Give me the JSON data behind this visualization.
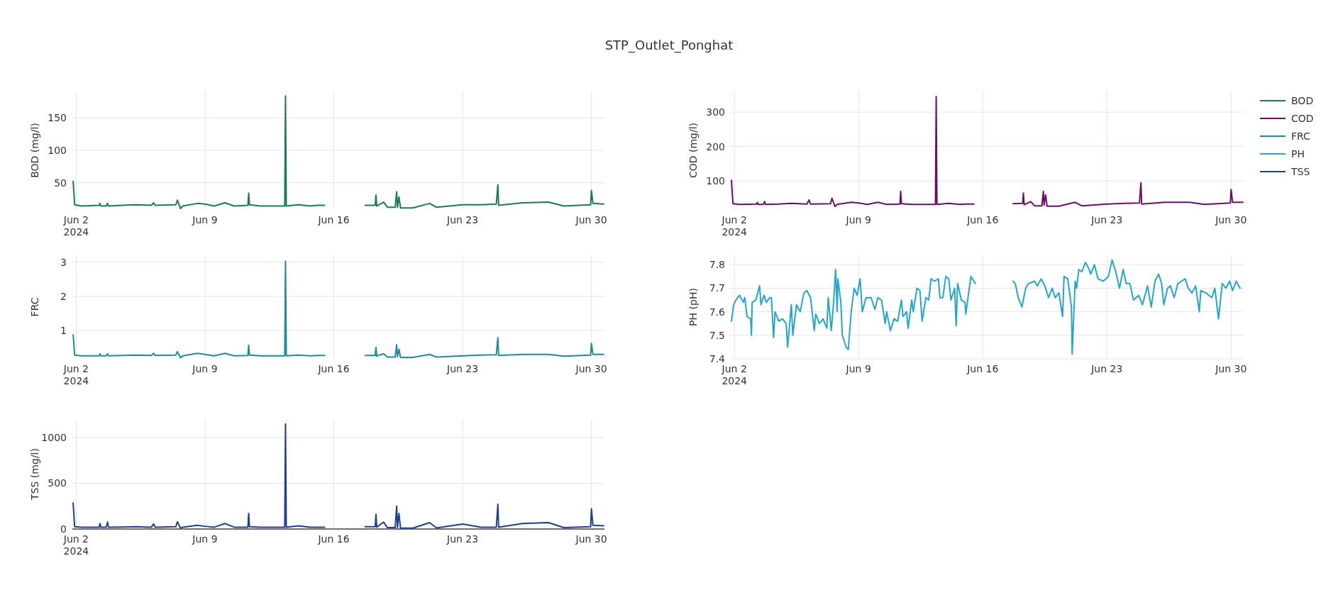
{
  "chart_data": [
    {
      "type": "line",
      "title": "STP_Outlet_Ponghat",
      "ylabel": "BOD (mg/l)",
      "xlim": [
        "2024-06-01T19:00",
        "2024-06-30T17:00"
      ],
      "xticks": [
        {
          "value": "2024-06-02",
          "label": "Jun 2\n2024"
        },
        {
          "value": "2024-06-09",
          "label": "Jun 9"
        },
        {
          "value": "2024-06-16",
          "label": "Jun 16"
        },
        {
          "value": "2024-06-23",
          "label": "Jun 23"
        },
        {
          "value": "2024-06-30",
          "label": "Jun 30"
        }
      ],
      "ylim": [
        8,
        192
      ],
      "yticks": [
        50,
        100,
        150
      ],
      "grid": true,
      "legend": "right",
      "marker": "none",
      "line_style": "solid",
      "x": [
        "2024-06-01T20:00",
        "2024-06-01T22:00",
        "2024-06-02T07:00",
        "2024-06-03T06:00",
        "2024-06-03T07:00",
        "2024-06-03T08:00",
        "2024-06-03T15:00",
        "2024-06-03T17:00",
        "2024-06-03T18:00",
        "2024-06-04T12:00",
        "2024-06-05T05:00",
        "2024-06-06T02:00",
        "2024-06-06T05:00",
        "2024-06-06T07:00",
        "2024-06-07T10:00",
        "2024-06-07T12:00",
        "2024-06-07T16:00",
        "2024-06-07T19:00",
        "2024-06-08T14:00",
        "2024-06-09T00:00",
        "2024-06-09T12:00",
        "2024-06-10T02:00",
        "2024-06-10T14:00",
        "2024-06-11T08:00",
        "2024-06-11T09:00",
        "2024-06-11T10:00",
        "2024-06-12T00:00",
        "2024-06-13T08:00",
        "2024-06-13T09:00",
        "2024-06-13T10:00",
        "2024-06-14T02:00",
        "2024-06-14T17:00",
        "2024-06-15T02:00",
        "2024-06-15T12:00",
        "2024-06-16T12:00",
        "2024-06-17T17:00",
        "2024-06-18T06:00",
        "2024-06-18T07:00",
        "2024-06-18T08:00",
        "2024-06-18T17:00",
        "2024-06-18T22:00",
        "2024-06-19T08:00",
        "2024-06-19T10:00",
        "2024-06-19T11:00",
        "2024-06-19T13:00",
        "2024-06-19T15:00",
        "2024-06-20T07:00",
        "2024-06-21T05:00",
        "2024-06-21T14:00",
        "2024-06-23T00:00",
        "2024-06-24T00:00",
        "2024-06-24T20:00",
        "2024-06-24T22:00",
        "2024-06-24T23:00",
        "2024-06-26T06:00",
        "2024-06-27T16:00",
        "2024-06-28T12:00",
        "2024-06-29T23:00",
        "2024-06-30T00:00",
        "2024-06-30T02:00",
        "2024-06-30T16:00"
      ],
      "series": [
        {
          "name": "BOD",
          "color": "#1a7a5a",
          "values": [
            52,
            16,
            14,
            15,
            18,
            14,
            14,
            18,
            14,
            15,
            16,
            15,
            19,
            15,
            16,
            23,
            10,
            14,
            18,
            17,
            14,
            19,
            14,
            15,
            34,
            16,
            14,
            14,
            184,
            14,
            16,
            14,
            15,
            15,
            null,
            15,
            15,
            31,
            14,
            20,
            12,
            12,
            36,
            12,
            28,
            11,
            11,
            18,
            12,
            16,
            16,
            17,
            47,
            15,
            19,
            20,
            14,
            16,
            38,
            18,
            17
          ]
        }
      ]
    },
    {
      "type": "line",
      "ylabel": "COD (mg/l)",
      "xlim": [
        "2024-06-01T19:00",
        "2024-06-30T17:00"
      ],
      "xticks": [
        {
          "value": "2024-06-02",
          "label": "Jun 2\n2024"
        },
        {
          "value": "2024-06-09",
          "label": "Jun 9"
        },
        {
          "value": "2024-06-16",
          "label": "Jun 16"
        },
        {
          "value": "2024-06-23",
          "label": "Jun 23"
        },
        {
          "value": "2024-06-30",
          "label": "Jun 30"
        }
      ],
      "ylim": [
        16,
        362
      ],
      "yticks": [
        100,
        200,
        300
      ],
      "grid": true,
      "legend": "right",
      "marker": "none",
      "line_style": "solid",
      "x": [
        "2024-06-01T20:00",
        "2024-06-01T22:00",
        "2024-06-02T07:00",
        "2024-06-03T06:00",
        "2024-06-03T07:00",
        "2024-06-03T08:00",
        "2024-06-03T15:00",
        "2024-06-03T17:00",
        "2024-06-03T18:00",
        "2024-06-04T12:00",
        "2024-06-05T05:00",
        "2024-06-06T02:00",
        "2024-06-06T05:00",
        "2024-06-06T07:00",
        "2024-06-07T10:00",
        "2024-06-07T12:00",
        "2024-06-07T16:00",
        "2024-06-07T19:00",
        "2024-06-08T14:00",
        "2024-06-09T00:00",
        "2024-06-09T12:00",
        "2024-06-10T02:00",
        "2024-06-10T14:00",
        "2024-06-11T08:00",
        "2024-06-11T09:00",
        "2024-06-11T10:00",
        "2024-06-12T00:00",
        "2024-06-13T08:00",
        "2024-06-13T09:00",
        "2024-06-13T10:00",
        "2024-06-14T02:00",
        "2024-06-14T17:00",
        "2024-06-15T02:00",
        "2024-06-15T12:00",
        "2024-06-16T12:00",
        "2024-06-17T17:00",
        "2024-06-18T06:00",
        "2024-06-18T07:00",
        "2024-06-18T08:00",
        "2024-06-18T17:00",
        "2024-06-18T22:00",
        "2024-06-19T08:00",
        "2024-06-19T10:00",
        "2024-06-19T11:00",
        "2024-06-19T13:00",
        "2024-06-19T15:00",
        "2024-06-20T07:00",
        "2024-06-21T05:00",
        "2024-06-21T14:00",
        "2024-06-23T00:00",
        "2024-06-24T00:00",
        "2024-06-24T20:00",
        "2024-06-24T22:00",
        "2024-06-24T23:00",
        "2024-06-26T06:00",
        "2024-06-27T16:00",
        "2024-06-28T12:00",
        "2024-06-29T23:00",
        "2024-06-30T00:00",
        "2024-06-30T02:00",
        "2024-06-30T16:00"
      ],
      "series": [
        {
          "name": "COD",
          "color": "#6a0d6e",
          "values": [
            102,
            34,
            32,
            33,
            38,
            32,
            32,
            40,
            32,
            33,
            35,
            33,
            45,
            33,
            34,
            50,
            26,
            32,
            38,
            36,
            32,
            38,
            32,
            33,
            70,
            34,
            32,
            32,
            345,
            32,
            35,
            32,
            33,
            33,
            null,
            34,
            35,
            65,
            31,
            40,
            28,
            28,
            70,
            30,
            60,
            27,
            27,
            38,
            28,
            33,
            35,
            36,
            95,
            33,
            38,
            38,
            32,
            36,
            75,
            38,
            38
          ]
        }
      ]
    },
    {
      "type": "line",
      "ylabel": "FRC",
      "xlim": [
        "2024-06-01T19:00",
        "2024-06-30T17:00"
      ],
      "xticks": [
        {
          "value": "2024-06-02",
          "label": "Jun 2\n2024"
        },
        {
          "value": "2024-06-09",
          "label": "Jun 9"
        },
        {
          "value": "2024-06-16",
          "label": "Jun 16"
        },
        {
          "value": "2024-06-23",
          "label": "Jun 23"
        },
        {
          "value": "2024-06-30",
          "label": "Jun 30"
        }
      ],
      "ylim": [
        0.17,
        3.2
      ],
      "yticks": [
        1,
        2,
        3
      ],
      "grid": true,
      "legend": "right",
      "marker": "none",
      "line_style": "solid",
      "x": [
        "2024-06-01T20:00",
        "2024-06-01T22:00",
        "2024-06-02T07:00",
        "2024-06-03T06:00",
        "2024-06-03T07:00",
        "2024-06-03T08:00",
        "2024-06-03T15:00",
        "2024-06-03T17:00",
        "2024-06-03T18:00",
        "2024-06-04T12:00",
        "2024-06-05T05:00",
        "2024-06-06T02:00",
        "2024-06-06T05:00",
        "2024-06-06T07:00",
        "2024-06-07T10:00",
        "2024-06-07T12:00",
        "2024-06-07T16:00",
        "2024-06-07T19:00",
        "2024-06-08T14:00",
        "2024-06-09T00:00",
        "2024-06-09T12:00",
        "2024-06-10T02:00",
        "2024-06-10T14:00",
        "2024-06-11T08:00",
        "2024-06-11T09:00",
        "2024-06-11T10:00",
        "2024-06-12T00:00",
        "2024-06-13T08:00",
        "2024-06-13T09:00",
        "2024-06-13T10:00",
        "2024-06-14T02:00",
        "2024-06-14T17:00",
        "2024-06-15T02:00",
        "2024-06-15T12:00",
        "2024-06-16T12:00",
        "2024-06-17T17:00",
        "2024-06-18T06:00",
        "2024-06-18T07:00",
        "2024-06-18T08:00",
        "2024-06-18T17:00",
        "2024-06-18T22:00",
        "2024-06-19T08:00",
        "2024-06-19T10:00",
        "2024-06-19T11:00",
        "2024-06-19T13:00",
        "2024-06-19T15:00",
        "2024-06-20T07:00",
        "2024-06-21T05:00",
        "2024-06-21T14:00",
        "2024-06-23T00:00",
        "2024-06-24T00:00",
        "2024-06-24T20:00",
        "2024-06-24T22:00",
        "2024-06-24T23:00",
        "2024-06-26T06:00",
        "2024-06-27T16:00",
        "2024-06-28T12:00",
        "2024-06-29T23:00",
        "2024-06-30T00:00",
        "2024-06-30T02:00",
        "2024-06-30T16:00"
      ],
      "series": [
        {
          "name": "FRC",
          "color": "#1f8aa0",
          "values": [
            0.87,
            0.28,
            0.26,
            0.26,
            0.32,
            0.26,
            0.26,
            0.32,
            0.26,
            0.27,
            0.28,
            0.27,
            0.33,
            0.27,
            0.28,
            0.38,
            0.2,
            0.26,
            0.33,
            0.3,
            0.26,
            0.33,
            0.26,
            0.27,
            0.57,
            0.28,
            0.26,
            0.26,
            3.03,
            0.26,
            0.28,
            0.26,
            0.27,
            0.27,
            null,
            0.27,
            0.27,
            0.5,
            0.25,
            0.32,
            0.22,
            0.22,
            0.58,
            0.23,
            0.45,
            0.21,
            0.21,
            0.3,
            0.22,
            0.26,
            0.28,
            0.29,
            0.79,
            0.27,
            0.3,
            0.3,
            0.25,
            0.28,
            0.62,
            0.3,
            0.3
          ]
        }
      ]
    },
    {
      "type": "line",
      "ylabel": "PH (pH)",
      "xlim": [
        "2024-06-01T19:00",
        "2024-06-30T17:00"
      ],
      "xticks": [
        {
          "value": "2024-06-02",
          "label": "Jun 2\n2024"
        },
        {
          "value": "2024-06-09",
          "label": "Jun 9"
        },
        {
          "value": "2024-06-16",
          "label": "Jun 16"
        },
        {
          "value": "2024-06-23",
          "label": "Jun 23"
        },
        {
          "value": "2024-06-30",
          "label": "Jun 30"
        }
      ],
      "ylim": [
        7.4,
        7.84
      ],
      "yticks": [
        7.4,
        7.5,
        7.6,
        7.7,
        7.8
      ],
      "grid": true,
      "legend": "right",
      "marker": "none",
      "line_style": "solid",
      "x": [
        "2024-06-01T20:00",
        "2024-06-01T23:00",
        "2024-06-02T02:00",
        "2024-06-02T07:00",
        "2024-06-02T12:00",
        "2024-06-02T14:00",
        "2024-06-02T17:00",
        "2024-06-02T22:00",
        "2024-06-02T23:00",
        "2024-06-03T00:00",
        "2024-06-03T05:00",
        "2024-06-03T10:00",
        "2024-06-03T12:00",
        "2024-06-03T16:00",
        "2024-06-03T19:00",
        "2024-06-04T00:00",
        "2024-06-04T02:00",
        "2024-06-04T05:00",
        "2024-06-04T07:00",
        "2024-06-04T12:00",
        "2024-06-04T17:00",
        "2024-06-04T22:00",
        "2024-06-05T00:00",
        "2024-06-05T05:00",
        "2024-06-05T07:00",
        "2024-06-05T12:00",
        "2024-06-05T17:00",
        "2024-06-05T22:00",
        "2024-06-06T02:00",
        "2024-06-06T07:00",
        "2024-06-06T12:00",
        "2024-06-06T14:00",
        "2024-06-06T19:00",
        "2024-06-07T00:00",
        "2024-06-07T05:00",
        "2024-06-07T07:00",
        "2024-06-07T11:00",
        "2024-06-07T14:00",
        "2024-06-07T17:00",
        "2024-06-07T19:00",
        "2024-06-07T20:00",
        "2024-06-08T00:00",
        "2024-06-08T02:00",
        "2024-06-08T07:00",
        "2024-06-08T10:00",
        "2024-06-08T14:00",
        "2024-06-08T18:00",
        "2024-06-08T22:00",
        "2024-06-09T02:00",
        "2024-06-09T05:00",
        "2024-06-09T10:00",
        "2024-06-09T17:00",
        "2024-06-09T22:00",
        "2024-06-10T02:00",
        "2024-06-10T07:00",
        "2024-06-10T12:00",
        "2024-06-10T14:00",
        "2024-06-10T19:00",
        "2024-06-11T00:00",
        "2024-06-11T05:00",
        "2024-06-11T10:00",
        "2024-06-11T12:00",
        "2024-06-11T17:00",
        "2024-06-11T19:00",
        "2024-06-12T00:00",
        "2024-06-12T02:00",
        "2024-06-12T07:00",
        "2024-06-12T11:00",
        "2024-06-12T14:00",
        "2024-06-12T19:00",
        "2024-06-12T23:00",
        "2024-06-13T02:00",
        "2024-06-13T07:00",
        "2024-06-13T12:00",
        "2024-06-13T14:00",
        "2024-06-13T18:00",
        "2024-06-13T22:00",
        "2024-06-14T02:00",
        "2024-06-14T05:00",
        "2024-06-14T10:00",
        "2024-06-14T12:00",
        "2024-06-14T14:00",
        "2024-06-14T19:00",
        "2024-06-15T00:00",
        "2024-06-15T01:00",
        "2024-06-15T08:00",
        "2024-06-15T14:00",
        "2024-06-15T17:00",
        "2024-06-16T12:00",
        "2024-06-17T17:00",
        "2024-06-17T20:00",
        "2024-06-18T00:00",
        "2024-06-18T05:00",
        "2024-06-18T10:00",
        "2024-06-18T14:00",
        "2024-06-18T22:00",
        "2024-06-19T02:00",
        "2024-06-19T07:00",
        "2024-06-19T12:00",
        "2024-06-19T17:00",
        "2024-06-19T22:00",
        "2024-06-20T02:00",
        "2024-06-20T07:00",
        "2024-06-20T12:00",
        "2024-06-20T14:00",
        "2024-06-20T19:00",
        "2024-06-21T00:00",
        "2024-06-21T01:00",
        "2024-06-21T05:00",
        "2024-06-21T07:00",
        "2024-06-21T10:00",
        "2024-06-21T14:00",
        "2024-06-21T19:00",
        "2024-06-22T00:00",
        "2024-06-22T02:00",
        "2024-06-22T07:00",
        "2024-06-22T12:00",
        "2024-06-22T19:00",
        "2024-06-23T02:00",
        "2024-06-23T07:00",
        "2024-06-23T12:00",
        "2024-06-23T17:00",
        "2024-06-23T22:00",
        "2024-06-24T02:00",
        "2024-06-24T07:00",
        "2024-06-24T12:00",
        "2024-06-24T19:00",
        "2024-06-25T00:00",
        "2024-06-25T07:00",
        "2024-06-25T12:00",
        "2024-06-25T17:00",
        "2024-06-25T22:00",
        "2024-06-26T02:00",
        "2024-06-26T05:00",
        "2024-06-26T10:00",
        "2024-06-26T14:00",
        "2024-06-26T19:00",
        "2024-06-27T00:00",
        "2024-06-27T05:00",
        "2024-06-27T10:00",
        "2024-06-27T14:00",
        "2024-06-27T19:00",
        "2024-06-28T00:00",
        "2024-06-28T05:00",
        "2024-06-28T07:00",
        "2024-06-28T14:00",
        "2024-06-28T22:00",
        "2024-06-29T02:00",
        "2024-06-29T07:00",
        "2024-06-29T12:00",
        "2024-06-29T17:00",
        "2024-06-29T22:00",
        "2024-06-30T02:00",
        "2024-06-30T07:00",
        "2024-06-30T12:00"
      ],
      "series": [
        {
          "name": "PH",
          "color": "#22a7c8",
          "values": [
            7.56,
            7.63,
            7.65,
            7.67,
            7.64,
            7.66,
            7.58,
            7.57,
            7.5,
            7.64,
            7.65,
            7.71,
            7.63,
            7.67,
            7.64,
            7.66,
            7.66,
            7.49,
            7.6,
            7.56,
            7.57,
            7.55,
            7.45,
            7.63,
            7.5,
            7.63,
            7.6,
            7.68,
            7.69,
            7.66,
            7.52,
            7.59,
            7.55,
            7.57,
            7.53,
            7.66,
            7.52,
            7.63,
            7.78,
            7.6,
            7.74,
            7.64,
            7.5,
            7.45,
            7.44,
            7.6,
            7.7,
            7.67,
            7.74,
            7.6,
            7.66,
            7.66,
            7.61,
            7.66,
            7.65,
            7.55,
            7.6,
            7.52,
            7.57,
            7.56,
            7.65,
            7.58,
            7.6,
            7.53,
            7.65,
            7.6,
            7.7,
            7.69,
            7.56,
            7.66,
            7.65,
            7.74,
            7.73,
            7.74,
            7.66,
            7.66,
            7.75,
            7.74,
            7.65,
            7.7,
            7.54,
            7.72,
            7.65,
            7.64,
            7.59,
            7.75,
            7.72,
            null,
            null,
            7.73,
            7.72,
            7.66,
            7.62,
            7.7,
            7.72,
            7.73,
            7.71,
            7.74,
            7.71,
            7.66,
            7.7,
            7.66,
            7.68,
            7.58,
            7.75,
            7.74,
            7.62,
            7.42,
            7.73,
            7.7,
            7.78,
            7.77,
            7.81,
            7.78,
            7.76,
            7.8,
            7.74,
            7.73,
            7.75,
            7.82,
            7.77,
            7.7,
            7.78,
            7.72,
            7.72,
            7.65,
            7.67,
            7.63,
            7.71,
            7.62,
            7.73,
            7.76,
            7.72,
            7.63,
            7.7,
            7.71,
            7.66,
            7.72,
            7.73,
            7.74,
            7.7,
            7.68,
            7.71,
            7.6,
            7.69,
            7.68,
            7.66,
            7.7,
            7.57,
            7.72,
            7.7,
            7.73,
            7.69,
            7.73,
            7.7
          ]
        }
      ]
    },
    {
      "type": "line",
      "ylabel": "TSS (mg/l)",
      "xlim": [
        "2024-06-01T19:00",
        "2024-06-30T17:00"
      ],
      "xticks": [
        {
          "value": "2024-06-02",
          "label": "Jun 2\n2024"
        },
        {
          "value": "2024-06-09",
          "label": "Jun 9"
        },
        {
          "value": "2024-06-16",
          "label": "Jun 16"
        },
        {
          "value": "2024-06-23",
          "label": "Jun 23"
        },
        {
          "value": "2024-06-30",
          "label": "Jun 30"
        }
      ],
      "ylim": [
        0,
        1200
      ],
      "yticks": [
        0,
        500,
        1000
      ],
      "grid": true,
      "legend": "right",
      "marker": "none",
      "line_style": "solid",
      "x": [
        "2024-06-01T20:00",
        "2024-06-01T22:00",
        "2024-06-02T07:00",
        "2024-06-03T06:00",
        "2024-06-03T07:00",
        "2024-06-03T08:00",
        "2024-06-03T15:00",
        "2024-06-03T17:00",
        "2024-06-03T18:00",
        "2024-06-04T12:00",
        "2024-06-05T05:00",
        "2024-06-06T02:00",
        "2024-06-06T05:00",
        "2024-06-06T07:00",
        "2024-06-07T10:00",
        "2024-06-07T12:00",
        "2024-06-07T16:00",
        "2024-06-07T19:00",
        "2024-06-08T14:00",
        "2024-06-09T00:00",
        "2024-06-09T12:00",
        "2024-06-10T02:00",
        "2024-06-10T14:00",
        "2024-06-11T08:00",
        "2024-06-11T09:00",
        "2024-06-11T10:00",
        "2024-06-12T00:00",
        "2024-06-13T08:00",
        "2024-06-13T09:00",
        "2024-06-13T10:00",
        "2024-06-14T02:00",
        "2024-06-14T17:00",
        "2024-06-15T02:00",
        "2024-06-15T12:00",
        "2024-06-16T12:00",
        "2024-06-17T17:00",
        "2024-06-18T06:00",
        "2024-06-18T07:00",
        "2024-06-18T08:00",
        "2024-06-18T17:00",
        "2024-06-18T22:00",
        "2024-06-19T08:00",
        "2024-06-19T10:00",
        "2024-06-19T11:00",
        "2024-06-19T13:00",
        "2024-06-19T15:00",
        "2024-06-20T07:00",
        "2024-06-21T05:00",
        "2024-06-21T14:00",
        "2024-06-23T00:00",
        "2024-06-24T00:00",
        "2024-06-24T20:00",
        "2024-06-24T22:00",
        "2024-06-24T23:00",
        "2024-06-26T06:00",
        "2024-06-27T16:00",
        "2024-06-28T12:00",
        "2024-06-29T23:00",
        "2024-06-30T00:00",
        "2024-06-30T02:00",
        "2024-06-30T16:00"
      ],
      "series": [
        {
          "name": "TSS",
          "color": "#1f3f8f",
          "values": [
            285,
            25,
            20,
            20,
            60,
            20,
            20,
            75,
            20,
            22,
            25,
            20,
            55,
            20,
            25,
            80,
            10,
            20,
            40,
            30,
            20,
            60,
            20,
            20,
            170,
            25,
            20,
            20,
            1145,
            20,
            35,
            20,
            20,
            20,
            null,
            25,
            25,
            160,
            20,
            75,
            15,
            15,
            250,
            15,
            170,
            10,
            10,
            70,
            12,
            55,
            20,
            20,
            270,
            20,
            60,
            70,
            15,
            25,
            220,
            40,
            35
          ]
        }
      ]
    }
  ]
}
